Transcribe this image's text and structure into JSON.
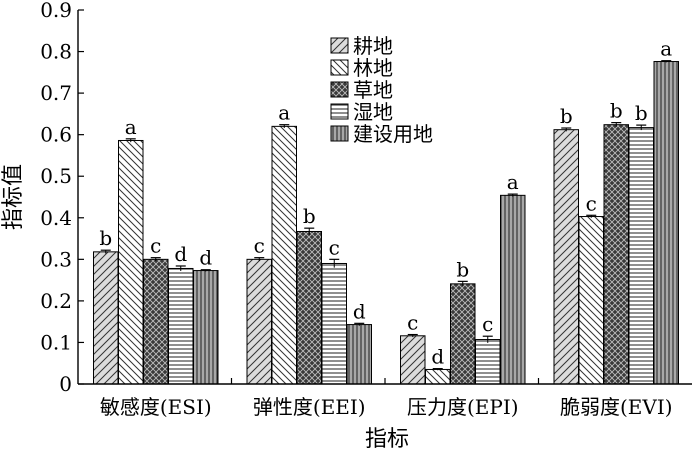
{
  "chart_data": {
    "type": "bar",
    "xlabel": "指标",
    "ylabel": "指标值",
    "ylim": [
      0,
      0.9
    ],
    "yticks": [
      "0",
      "0.1",
      "0.2",
      "0.3",
      "0.4",
      "0.5",
      "0.6",
      "0.7",
      "0.8",
      "0.9"
    ],
    "categories": [
      "敏感度(ESI)",
      "弹性度(EEI)",
      "压力度(EPI)",
      "脆弱度(EVI)"
    ],
    "legend_position": "top-center",
    "grid": false,
    "series": [
      {
        "name": "耕地",
        "pattern": "diag-up",
        "values": [
          0.318,
          0.3,
          0.116,
          0.612
        ],
        "errors": [
          0.004,
          0.004,
          0.003,
          0.004
        ],
        "labels": [
          "b",
          "c",
          "c",
          "b"
        ]
      },
      {
        "name": "林地",
        "pattern": "diag-down",
        "values": [
          0.586,
          0.62,
          0.035,
          0.403
        ],
        "errors": [
          0.004,
          0.004,
          0.002,
          0.003
        ],
        "labels": [
          "a",
          "a",
          "d",
          "c"
        ]
      },
      {
        "name": "草地",
        "pattern": "crosshatch",
        "values": [
          0.3,
          0.367,
          0.241,
          0.624
        ],
        "errors": [
          0.004,
          0.008,
          0.006,
          0.005
        ],
        "labels": [
          "c",
          "b",
          "b",
          "b"
        ]
      },
      {
        "name": "湿地",
        "pattern": "horizontal",
        "values": [
          0.278,
          0.29,
          0.107,
          0.617
        ],
        "errors": [
          0.006,
          0.01,
          0.008,
          0.006
        ],
        "labels": [
          "d",
          "c",
          "c",
          "b"
        ]
      },
      {
        "name": "建设用地",
        "pattern": "vertical",
        "values": [
          0.273,
          0.143,
          0.454,
          0.776
        ],
        "errors": [
          0.002,
          0.003,
          0.003,
          0.002
        ],
        "labels": [
          "d",
          "d",
          "a",
          "a"
        ]
      }
    ]
  }
}
